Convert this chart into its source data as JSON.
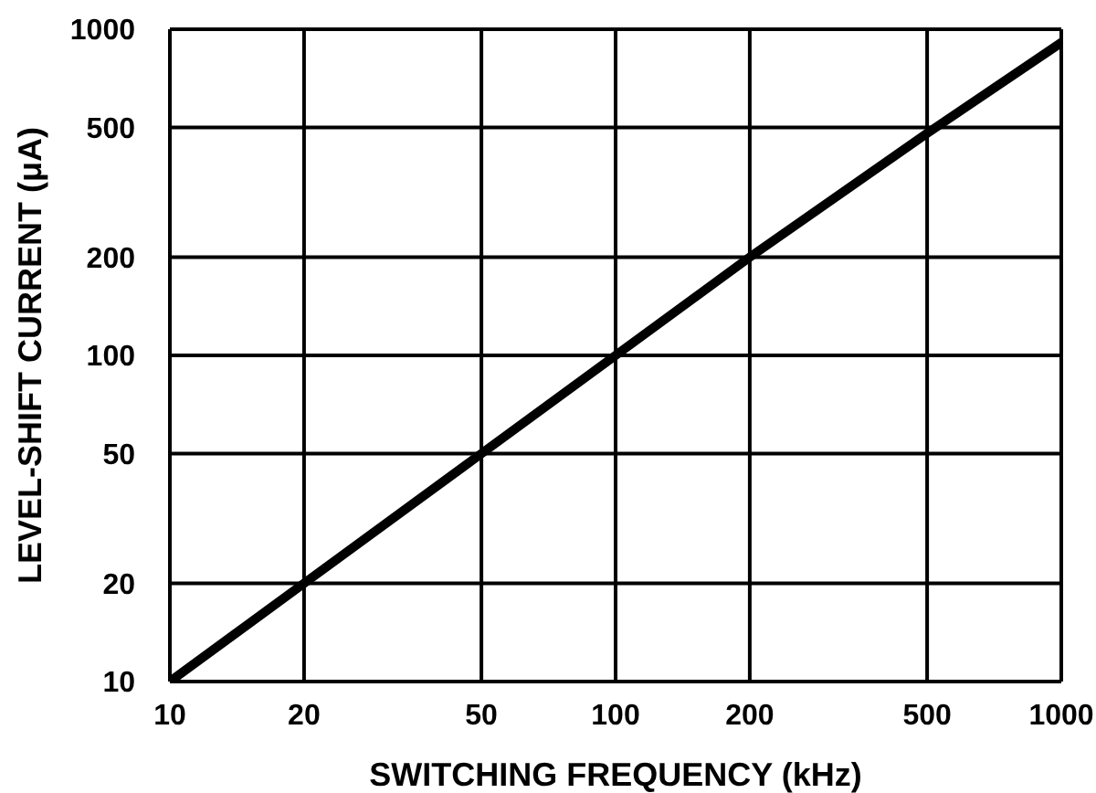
{
  "chart_data": {
    "type": "line",
    "xlabel": "SWITCHING FREQUENCY (kHz)",
    "ylabel": "LEVEL-SHIFT CURRENT (μA)",
    "x": [
      10,
      20,
      50,
      100,
      200,
      500,
      1000
    ],
    "series": [
      {
        "color": "#000000",
        "values": [
          10,
          20,
          50,
          100,
          200,
          480,
          910
        ]
      }
    ],
    "xlim": [
      10,
      1000
    ],
    "ylim": [
      10,
      1000
    ],
    "xticks": [
      10,
      20,
      50,
      100,
      200,
      500,
      1000
    ],
    "yticks": [
      10,
      20,
      50,
      100,
      200,
      500,
      1000
    ],
    "log": "xy",
    "grid": true,
    "line_style": "solid"
  }
}
